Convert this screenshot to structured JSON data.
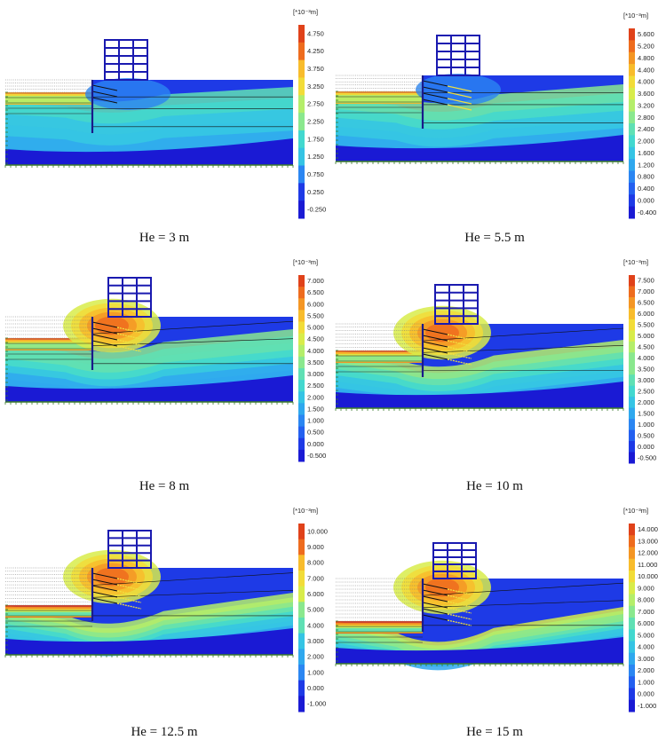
{
  "colorbar_unit": "[*10⁻³m]",
  "palette": [
    "#1a1ad4",
    "#1e3ae6",
    "#2460f0",
    "#2b86f2",
    "#2fa8ee",
    "#35c4e4",
    "#42d8cf",
    "#5fe0b4",
    "#8ae88e",
    "#b4ee6a",
    "#d8ec4a",
    "#f2dc38",
    "#f8bc2c",
    "#f49624",
    "#ee6c1e",
    "#e0421a"
  ],
  "panels": [
    {
      "caption": "He = 3 m",
      "excavation_depth_m": 3,
      "ticks": [
        "4.750",
        "4.250",
        "3.750",
        "3.250",
        "2.750",
        "2.250",
        "1.750",
        "1.250",
        "0.750",
        "0.250",
        "-0.250"
      ]
    },
    {
      "caption": "He = 5.5 m",
      "excavation_depth_m": 5.5,
      "ticks": [
        "5.600",
        "5.200",
        "4.800",
        "4.400",
        "4.000",
        "3.600",
        "3.200",
        "2.800",
        "2.400",
        "2.000",
        "1.600",
        "1.200",
        "0.800",
        "0.400",
        "0.000",
        "-0.400"
      ]
    },
    {
      "caption": "He = 8 m",
      "excavation_depth_m": 8,
      "ticks": [
        "7.000",
        "6.500",
        "6.000",
        "5.500",
        "5.000",
        "4.500",
        "4.000",
        "3.500",
        "3.000",
        "2.500",
        "2.000",
        "1.500",
        "1.000",
        "0.500",
        "0.000",
        "-0.500"
      ]
    },
    {
      "caption": "He = 10 m",
      "excavation_depth_m": 10,
      "ticks": [
        "7.500",
        "7.000",
        "6.500",
        "6.000",
        "5.500",
        "5.000",
        "4.500",
        "4.000",
        "3.500",
        "3.000",
        "2.500",
        "2.000",
        "1.500",
        "1.000",
        "0.500",
        "0.000",
        "-0.500"
      ]
    },
    {
      "caption": "He = 12.5 m",
      "excavation_depth_m": 12.5,
      "ticks": [
        "10.000",
        "9.000",
        "8.000",
        "7.000",
        "6.000",
        "5.000",
        "4.000",
        "3.000",
        "2.000",
        "1.000",
        "0.000",
        "-1.000"
      ]
    },
    {
      "caption": "He = 15 m",
      "excavation_depth_m": 15,
      "ticks": [
        "14.000",
        "13.000",
        "12.000",
        "11.000",
        "10.000",
        "9.000",
        "8.000",
        "7.000",
        "6.000",
        "5.000",
        "4.000",
        "3.000",
        "2.000",
        "1.000",
        "0.000",
        "-1.000"
      ]
    }
  ]
}
